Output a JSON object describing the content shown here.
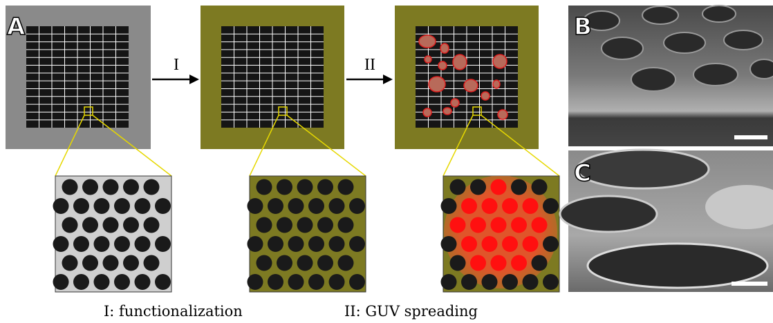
{
  "panels": {
    "a": {
      "label": "A",
      "steps": [
        "I",
        "II"
      ]
    },
    "b": {
      "label": "B"
    },
    "c": {
      "label": "C"
    }
  },
  "legend": [
    "I: functionalization",
    "II: GUV spreading"
  ]
}
